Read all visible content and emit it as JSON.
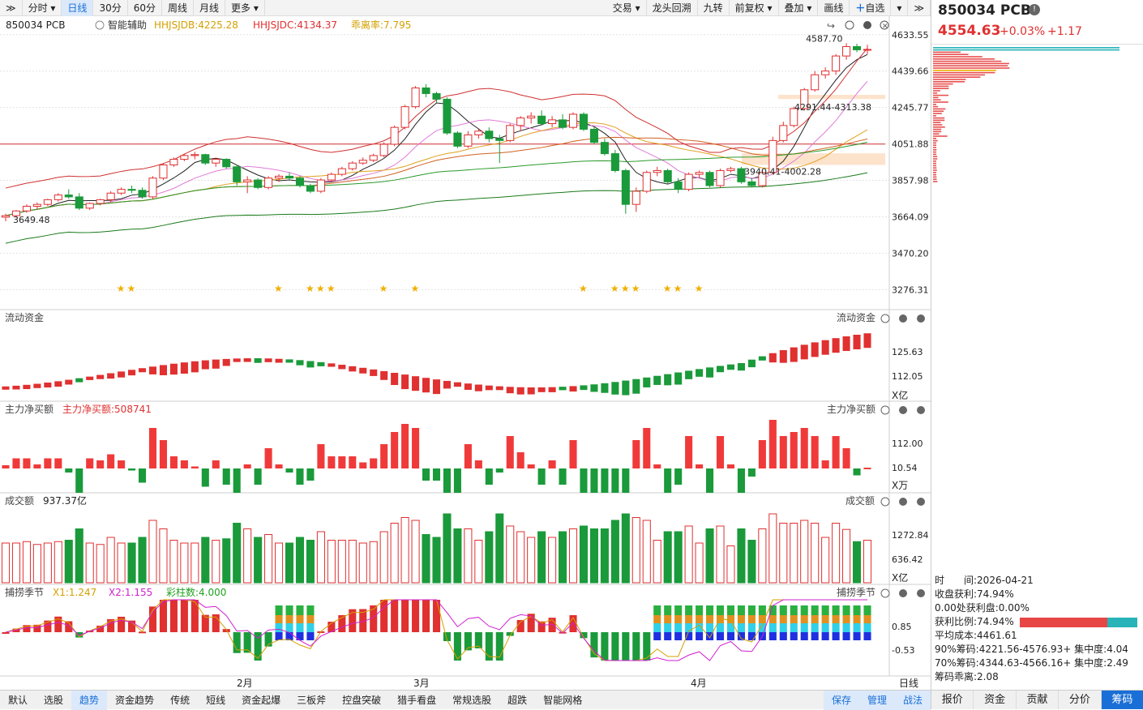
{
  "toolbar": {
    "collapse_icon": "double-chevron-right-icon",
    "periods": [
      "分时",
      "日线",
      "30分",
      "60分",
      "周线",
      "月线",
      "更多"
    ],
    "active_period": "日线",
    "right_items": [
      "交易",
      "龙头回溯",
      "九转",
      "前复权",
      "叠加",
      "画线",
      "自选"
    ]
  },
  "main_chart": {
    "code": "850034 PCB",
    "assist": "智能辅助",
    "indicator1": "HHJSJDB:4225.28",
    "indicator2": "HHJSJDC:4134.37",
    "indicator3": "乖离率:7.795",
    "price_labels": [
      "4633.55",
      "4439.66",
      "4245.77",
      "4051.88",
      "3857.98",
      "3664.09",
      "3470.20",
      "3276.31"
    ],
    "max_label": "4587.70",
    "min_label": "3649.48",
    "zone_label_upper": "4291.44-4313.38",
    "zone_label_lower": "3940.41-4002.28"
  },
  "panels": {
    "liudong": {
      "title": "流动资金",
      "unit": "X亿",
      "labels": [
        "125.63",
        "112.05"
      ]
    },
    "zhuli": {
      "title": "主力净买额",
      "value_label": "主力净买额:508741",
      "unit": "X万",
      "labels": [
        "112.00",
        "10.54"
      ]
    },
    "chengjiao": {
      "title": "成交额",
      "value_label": "937.37亿",
      "unit": "X亿",
      "labels": [
        "1272.84",
        "636.42"
      ]
    },
    "bulao": {
      "title": "捕捞季节",
      "x1": "X1:1.247",
      "x2": "X2:1.155",
      "caizhu": "彩柱数:4.000",
      "labels": [
        "0.85",
        "-0.53"
      ]
    }
  },
  "xaxis": {
    "months": [
      "2月",
      "3月",
      "4月"
    ],
    "period_label": "日线"
  },
  "bottom_tabs": [
    "默认",
    "选股",
    "趋势",
    "资金趋势",
    "传统",
    "短线",
    "资金起爆",
    "三板斧",
    "控盘突破",
    "猎手看盘",
    "常规选股",
    "超跌",
    "智能网格"
  ],
  "active_bottom": "趋势",
  "bottom_right": [
    "保存",
    "管理",
    "战法"
  ],
  "side": {
    "title": "850034 PCB",
    "price": "4554.63",
    "pct": "+0.03%",
    "chg": "+1.17",
    "stats": [
      "时　　间:2026-04-21",
      "收盘获利:74.94%",
      "0.00处获利盘:0.00%",
      "获利比例:74.94%",
      "平均成本:4461.61",
      "90%筹码:4221.56-4576.93+ 集中度:4.04",
      "70%筹码:4344.63-4566.16+ 集中度:2.49",
      "筹码乖离:2.08"
    ],
    "tabs": [
      "报价",
      "资金",
      "贡献",
      "分价",
      "筹码"
    ],
    "active_tab": "筹码"
  },
  "chart_data": {
    "type": "candlestick",
    "title": "850034 PCB",
    "ylabel": "",
    "ylim": [
      3200,
      4680
    ],
    "dates_hint": "daily candles, approx. 2026-01-05 to 2026-04-21",
    "candles": [
      [
        3662,
        3680,
        3640,
        3670
      ],
      [
        3670,
        3700,
        3660,
        3695
      ],
      [
        3695,
        3730,
        3685,
        3720
      ],
      [
        3720,
        3740,
        3705,
        3730
      ],
      [
        3730,
        3760,
        3720,
        3755
      ],
      [
        3755,
        3790,
        3745,
        3780
      ],
      [
        3780,
        3810,
        3760,
        3770
      ],
      [
        3770,
        3790,
        3700,
        3710
      ],
      [
        3710,
        3740,
        3700,
        3735
      ],
      [
        3735,
        3760,
        3725,
        3755
      ],
      [
        3755,
        3800,
        3740,
        3790
      ],
      [
        3790,
        3820,
        3780,
        3810
      ],
      [
        3810,
        3830,
        3790,
        3805
      ],
      [
        3805,
        3820,
        3760,
        3770
      ],
      [
        3770,
        3880,
        3760,
        3870
      ],
      [
        3870,
        3950,
        3860,
        3940
      ],
      [
        3940,
        3980,
        3930,
        3970
      ],
      [
        3970,
        4000,
        3960,
        3990
      ],
      [
        3990,
        4010,
        3970,
        3995
      ],
      [
        3995,
        4000,
        3940,
        3950
      ],
      [
        3950,
        3980,
        3930,
        3970
      ],
      [
        3970,
        3975,
        3920,
        3930
      ],
      [
        3930,
        3940,
        3830,
        3850
      ],
      [
        3850,
        3880,
        3790,
        3860
      ],
      [
        3860,
        3870,
        3810,
        3820
      ],
      [
        3820,
        3880,
        3810,
        3870
      ],
      [
        3870,
        3890,
        3850,
        3880
      ],
      [
        3880,
        3900,
        3860,
        3870
      ],
      [
        3870,
        3880,
        3820,
        3830
      ],
      [
        3830,
        3840,
        3790,
        3800
      ],
      [
        3800,
        3870,
        3790,
        3860
      ],
      [
        3860,
        3900,
        3850,
        3890
      ],
      [
        3890,
        3930,
        3880,
        3920
      ],
      [
        3920,
        3960,
        3910,
        3950
      ],
      [
        3950,
        3980,
        3940,
        3965
      ],
      [
        3965,
        4000,
        3955,
        3990
      ],
      [
        3990,
        4060,
        3980,
        4050
      ],
      [
        4050,
        4150,
        4040,
        4140
      ],
      [
        4140,
        4260,
        4130,
        4250
      ],
      [
        4250,
        4360,
        4240,
        4350
      ],
      [
        4350,
        4370,
        4300,
        4320
      ],
      [
        4320,
        4330,
        4270,
        4290
      ],
      [
        4290,
        4300,
        4100,
        4110
      ],
      [
        4110,
        4120,
        4030,
        4040
      ],
      [
        4040,
        4120,
        4030,
        4100
      ],
      [
        4100,
        4130,
        4080,
        4120
      ],
      [
        4120,
        4140,
        4060,
        4080
      ],
      [
        4080,
        4100,
        3950,
        4070
      ],
      [
        4070,
        4160,
        4060,
        4150
      ],
      [
        4150,
        4200,
        4120,
        4190
      ],
      [
        4190,
        4220,
        4160,
        4200
      ],
      [
        4200,
        4230,
        4150,
        4160
      ],
      [
        4160,
        4200,
        4140,
        4180
      ],
      [
        4180,
        4210,
        4130,
        4140
      ],
      [
        4140,
        4220,
        4130,
        4210
      ],
      [
        4210,
        4220,
        4120,
        4130
      ],
      [
        4130,
        4140,
        4050,
        4060
      ],
      [
        4060,
        4080,
        3990,
        4000
      ],
      [
        4000,
        4020,
        3900,
        3910
      ],
      [
        3910,
        3920,
        3680,
        3730
      ],
      [
        3730,
        3820,
        3690,
        3800
      ],
      [
        3800,
        3910,
        3790,
        3900
      ],
      [
        3900,
        3930,
        3880,
        3910
      ],
      [
        3910,
        3920,
        3840,
        3850
      ],
      [
        3850,
        3870,
        3790,
        3810
      ],
      [
        3810,
        3900,
        3800,
        3890
      ],
      [
        3890,
        3910,
        3870,
        3900
      ],
      [
        3900,
        3910,
        3820,
        3830
      ],
      [
        3830,
        3920,
        3820,
        3910
      ],
      [
        3910,
        3930,
        3900,
        3920
      ],
      [
        3920,
        3930,
        3840,
        3850
      ],
      [
        3850,
        3870,
        3820,
        3830
      ],
      [
        3830,
        3910,
        3820,
        3900
      ],
      [
        3900,
        4090,
        3890,
        4070
      ],
      [
        4070,
        4170,
        4060,
        4150
      ],
      [
        4150,
        4250,
        4140,
        4240
      ],
      [
        4240,
        4350,
        4230,
        4340
      ],
      [
        4340,
        4440,
        4330,
        4420
      ],
      [
        4420,
        4460,
        4400,
        4440
      ],
      [
        4440,
        4530,
        4420,
        4520
      ],
      [
        4520,
        4588,
        4500,
        4570
      ],
      [
        4570,
        4585,
        4540,
        4553
      ],
      [
        4553,
        4580,
        4530,
        4555
      ]
    ],
    "volume_label": "成交额",
    "month_ticks": {
      "2月": 20,
      "3月": 34,
      "4月": 57
    }
  }
}
